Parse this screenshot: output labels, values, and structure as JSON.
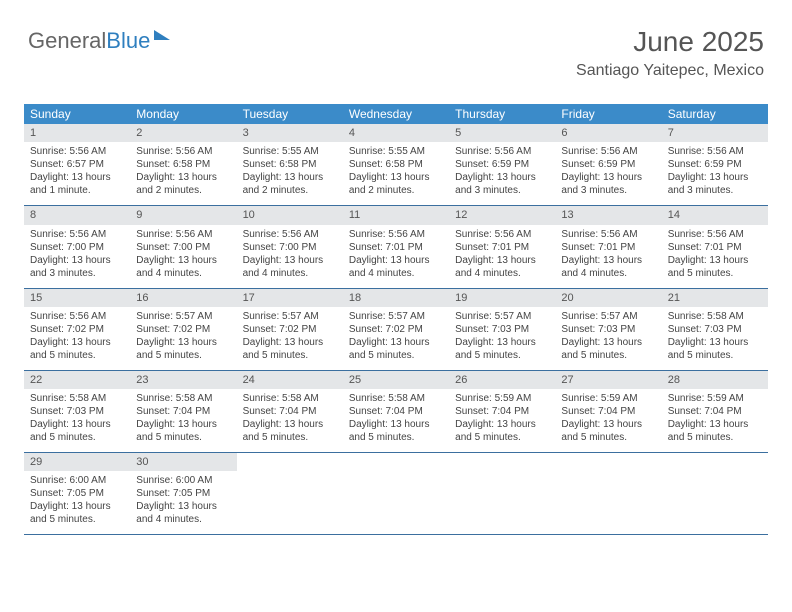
{
  "brand": {
    "part1": "General",
    "part2": "Blue"
  },
  "title": "June 2025",
  "location": "Santiago Yaitepec, Mexico",
  "colors": {
    "header_bg": "#3b8bc9",
    "header_text": "#ffffff",
    "daynum_bg": "#e4e6e8",
    "rule": "#3b6f9f",
    "text": "#444444",
    "title_color": "#555555",
    "brand_blue": "#2f7fbf"
  },
  "daynames": [
    "Sunday",
    "Monday",
    "Tuesday",
    "Wednesday",
    "Thursday",
    "Friday",
    "Saturday"
  ],
  "weeks": [
    [
      {
        "n": "1",
        "sr": "Sunrise: 5:56 AM",
        "ss": "Sunset: 6:57 PM",
        "d1": "Daylight: 13 hours",
        "d2": "and 1 minute."
      },
      {
        "n": "2",
        "sr": "Sunrise: 5:56 AM",
        "ss": "Sunset: 6:58 PM",
        "d1": "Daylight: 13 hours",
        "d2": "and 2 minutes."
      },
      {
        "n": "3",
        "sr": "Sunrise: 5:55 AM",
        "ss": "Sunset: 6:58 PM",
        "d1": "Daylight: 13 hours",
        "d2": "and 2 minutes."
      },
      {
        "n": "4",
        "sr": "Sunrise: 5:55 AM",
        "ss": "Sunset: 6:58 PM",
        "d1": "Daylight: 13 hours",
        "d2": "and 2 minutes."
      },
      {
        "n": "5",
        "sr": "Sunrise: 5:56 AM",
        "ss": "Sunset: 6:59 PM",
        "d1": "Daylight: 13 hours",
        "d2": "and 3 minutes."
      },
      {
        "n": "6",
        "sr": "Sunrise: 5:56 AM",
        "ss": "Sunset: 6:59 PM",
        "d1": "Daylight: 13 hours",
        "d2": "and 3 minutes."
      },
      {
        "n": "7",
        "sr": "Sunrise: 5:56 AM",
        "ss": "Sunset: 6:59 PM",
        "d1": "Daylight: 13 hours",
        "d2": "and 3 minutes."
      }
    ],
    [
      {
        "n": "8",
        "sr": "Sunrise: 5:56 AM",
        "ss": "Sunset: 7:00 PM",
        "d1": "Daylight: 13 hours",
        "d2": "and 3 minutes."
      },
      {
        "n": "9",
        "sr": "Sunrise: 5:56 AM",
        "ss": "Sunset: 7:00 PM",
        "d1": "Daylight: 13 hours",
        "d2": "and 4 minutes."
      },
      {
        "n": "10",
        "sr": "Sunrise: 5:56 AM",
        "ss": "Sunset: 7:00 PM",
        "d1": "Daylight: 13 hours",
        "d2": "and 4 minutes."
      },
      {
        "n": "11",
        "sr": "Sunrise: 5:56 AM",
        "ss": "Sunset: 7:01 PM",
        "d1": "Daylight: 13 hours",
        "d2": "and 4 minutes."
      },
      {
        "n": "12",
        "sr": "Sunrise: 5:56 AM",
        "ss": "Sunset: 7:01 PM",
        "d1": "Daylight: 13 hours",
        "d2": "and 4 minutes."
      },
      {
        "n": "13",
        "sr": "Sunrise: 5:56 AM",
        "ss": "Sunset: 7:01 PM",
        "d1": "Daylight: 13 hours",
        "d2": "and 4 minutes."
      },
      {
        "n": "14",
        "sr": "Sunrise: 5:56 AM",
        "ss": "Sunset: 7:01 PM",
        "d1": "Daylight: 13 hours",
        "d2": "and 5 minutes."
      }
    ],
    [
      {
        "n": "15",
        "sr": "Sunrise: 5:56 AM",
        "ss": "Sunset: 7:02 PM",
        "d1": "Daylight: 13 hours",
        "d2": "and 5 minutes."
      },
      {
        "n": "16",
        "sr": "Sunrise: 5:57 AM",
        "ss": "Sunset: 7:02 PM",
        "d1": "Daylight: 13 hours",
        "d2": "and 5 minutes."
      },
      {
        "n": "17",
        "sr": "Sunrise: 5:57 AM",
        "ss": "Sunset: 7:02 PM",
        "d1": "Daylight: 13 hours",
        "d2": "and 5 minutes."
      },
      {
        "n": "18",
        "sr": "Sunrise: 5:57 AM",
        "ss": "Sunset: 7:02 PM",
        "d1": "Daylight: 13 hours",
        "d2": "and 5 minutes."
      },
      {
        "n": "19",
        "sr": "Sunrise: 5:57 AM",
        "ss": "Sunset: 7:03 PM",
        "d1": "Daylight: 13 hours",
        "d2": "and 5 minutes."
      },
      {
        "n": "20",
        "sr": "Sunrise: 5:57 AM",
        "ss": "Sunset: 7:03 PM",
        "d1": "Daylight: 13 hours",
        "d2": "and 5 minutes."
      },
      {
        "n": "21",
        "sr": "Sunrise: 5:58 AM",
        "ss": "Sunset: 7:03 PM",
        "d1": "Daylight: 13 hours",
        "d2": "and 5 minutes."
      }
    ],
    [
      {
        "n": "22",
        "sr": "Sunrise: 5:58 AM",
        "ss": "Sunset: 7:03 PM",
        "d1": "Daylight: 13 hours",
        "d2": "and 5 minutes."
      },
      {
        "n": "23",
        "sr": "Sunrise: 5:58 AM",
        "ss": "Sunset: 7:04 PM",
        "d1": "Daylight: 13 hours",
        "d2": "and 5 minutes."
      },
      {
        "n": "24",
        "sr": "Sunrise: 5:58 AM",
        "ss": "Sunset: 7:04 PM",
        "d1": "Daylight: 13 hours",
        "d2": "and 5 minutes."
      },
      {
        "n": "25",
        "sr": "Sunrise: 5:58 AM",
        "ss": "Sunset: 7:04 PM",
        "d1": "Daylight: 13 hours",
        "d2": "and 5 minutes."
      },
      {
        "n": "26",
        "sr": "Sunrise: 5:59 AM",
        "ss": "Sunset: 7:04 PM",
        "d1": "Daylight: 13 hours",
        "d2": "and 5 minutes."
      },
      {
        "n": "27",
        "sr": "Sunrise: 5:59 AM",
        "ss": "Sunset: 7:04 PM",
        "d1": "Daylight: 13 hours",
        "d2": "and 5 minutes."
      },
      {
        "n": "28",
        "sr": "Sunrise: 5:59 AM",
        "ss": "Sunset: 7:04 PM",
        "d1": "Daylight: 13 hours",
        "d2": "and 5 minutes."
      }
    ],
    [
      {
        "n": "29",
        "sr": "Sunrise: 6:00 AM",
        "ss": "Sunset: 7:05 PM",
        "d1": "Daylight: 13 hours",
        "d2": "and 5 minutes."
      },
      {
        "n": "30",
        "sr": "Sunrise: 6:00 AM",
        "ss": "Sunset: 7:05 PM",
        "d1": "Daylight: 13 hours",
        "d2": "and 4 minutes."
      },
      null,
      null,
      null,
      null,
      null
    ]
  ]
}
